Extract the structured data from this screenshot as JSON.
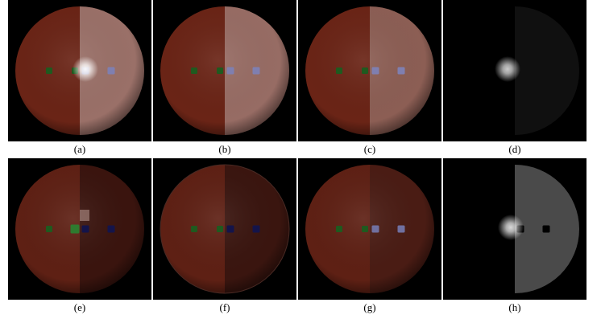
{
  "figure": {
    "panels": [
      {
        "label": "(a)"
      },
      {
        "label": "(b)"
      },
      {
        "label": "(c)"
      },
      {
        "label": "(d)"
      },
      {
        "label": "(e)"
      },
      {
        "label": "(f)"
      },
      {
        "label": "(g)"
      },
      {
        "label": "(h)"
      }
    ]
  }
}
